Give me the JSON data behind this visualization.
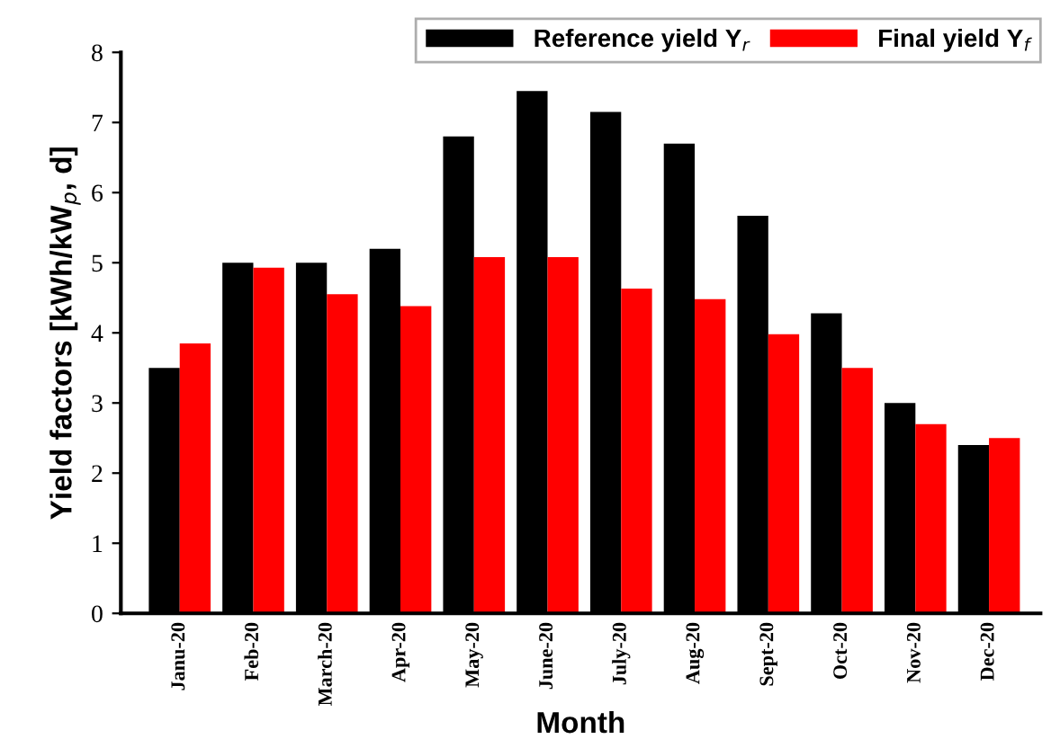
{
  "chart_data": {
    "type": "bar",
    "xlabel": "Month",
    "ylabel": "Yield factors [kWh/kW$_{p}$, d]",
    "categories": [
      "Janu-20",
      "Feb-20",
      "March-20",
      "Apr-20",
      "May-20",
      "June-20",
      "July-20",
      "Aug-20",
      "Sept-20",
      "Oct-20",
      "Nov-20",
      "Dec-20"
    ],
    "series": [
      {
        "name": "Reference yield Y$_{r}$",
        "color": "#000000",
        "values": [
          3.5,
          5.0,
          5.0,
          5.2,
          6.8,
          7.45,
          7.15,
          6.7,
          5.67,
          4.28,
          3.0,
          2.4
        ]
      },
      {
        "name": "Final yield Y$_{f}$",
        "color": "#ff0000",
        "values": [
          3.85,
          4.93,
          4.55,
          4.38,
          5.08,
          5.08,
          4.63,
          4.48,
          3.98,
          3.5,
          2.7,
          2.5
        ]
      }
    ],
    "ylim": [
      0,
      8
    ],
    "yticks": [
      0,
      1,
      2,
      3,
      4,
      5,
      6,
      7,
      8
    ],
    "grid": false,
    "legend": "top right"
  }
}
